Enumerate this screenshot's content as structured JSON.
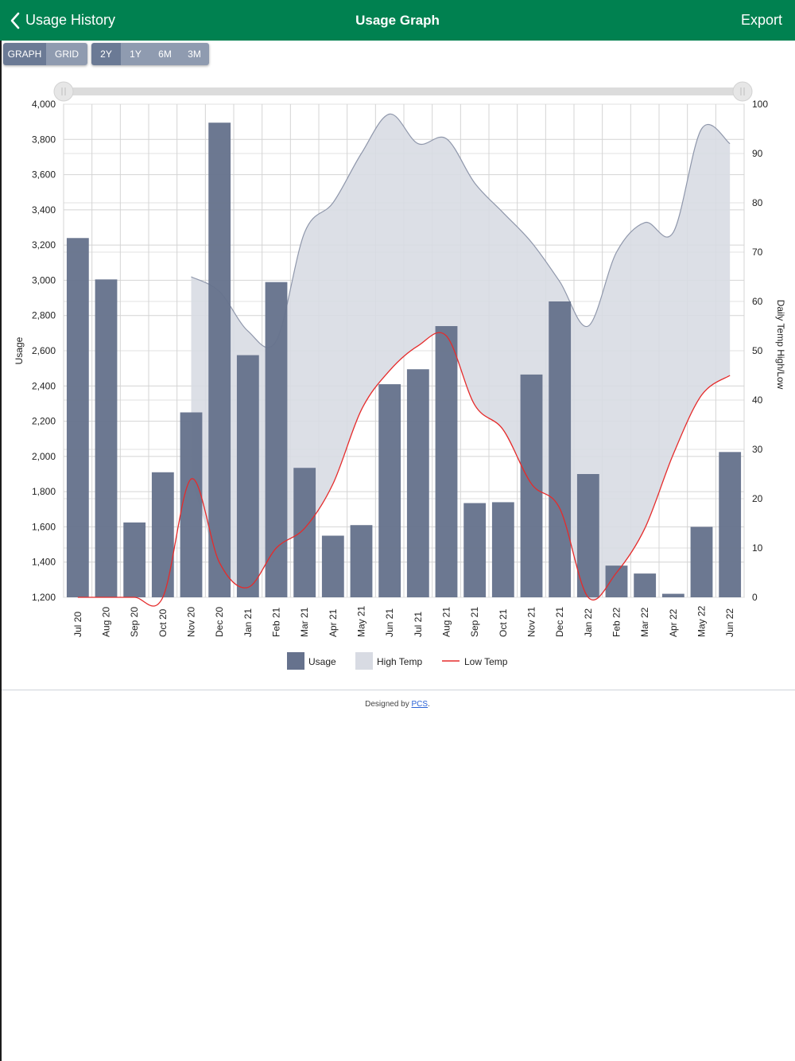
{
  "header": {
    "back_label": "Usage History",
    "title": "Usage Graph",
    "export_label": "Export",
    "color": "#008150"
  },
  "view_toggle": {
    "options": [
      "GRAPH",
      "GRID"
    ],
    "selected": "GRAPH"
  },
  "range_toggle": {
    "options": [
      "2Y",
      "1Y",
      "6M",
      "3M"
    ],
    "selected": "2Y"
  },
  "chart_data": {
    "type": "bar",
    "categories": [
      "Jul 20",
      "Aug 20",
      "Sep 20",
      "Oct 20",
      "Nov 20",
      "Dec 20",
      "Jan 21",
      "Feb 21",
      "Mar 21",
      "Apr 21",
      "May 21",
      "Jun 21",
      "Jul 21",
      "Aug 21",
      "Sep 21",
      "Oct 21",
      "Nov 21",
      "Dec 21",
      "Jan 22",
      "Feb 22",
      "Mar 22",
      "Apr 22",
      "May 22",
      "Jun 22"
    ],
    "ylabel": "Usage",
    "ylim": [
      1200,
      4000
    ],
    "yticks": [
      1200,
      1400,
      1600,
      1800,
      2000,
      2200,
      2400,
      2600,
      2800,
      3000,
      3200,
      3400,
      3600,
      3800,
      4000
    ],
    "y2label": "Daily Temp High/Low",
    "y2lim": [
      0,
      100
    ],
    "y2ticks": [
      0,
      10,
      20,
      30,
      40,
      50,
      60,
      70,
      80,
      90,
      100
    ],
    "grid": true,
    "legend_position": "bottom",
    "series": [
      {
        "name": "Usage",
        "type": "bar",
        "axis": "left",
        "color": "#66728d",
        "values": [
          3240,
          3005,
          1625,
          1910,
          2250,
          3895,
          2575,
          2990,
          1935,
          1550,
          1610,
          2410,
          2495,
          2740,
          1735,
          1740,
          2465,
          2880,
          1900,
          1380,
          1335,
          1220,
          1600,
          2025
        ]
      },
      {
        "name": "High Temp",
        "type": "area",
        "axis": "right",
        "color": "#d8dbe3",
        "values": [
          null,
          null,
          null,
          null,
          65,
          62,
          54,
          52,
          74,
          80,
          90,
          98,
          92,
          93,
          84,
          78,
          72,
          64,
          55,
          70,
          76,
          74,
          95,
          92
        ]
      },
      {
        "name": "Low Temp",
        "type": "line",
        "axis": "right",
        "color": "#e52b2b",
        "values": [
          0,
          0,
          0,
          0,
          24,
          7,
          2,
          10,
          14,
          23,
          38,
          46,
          51,
          53,
          39,
          34,
          23,
          18,
          0,
          5,
          14,
          29,
          41,
          45
        ]
      }
    ]
  },
  "footer": {
    "prefix": "Designed by ",
    "link": "PCS",
    "suffix": "."
  }
}
